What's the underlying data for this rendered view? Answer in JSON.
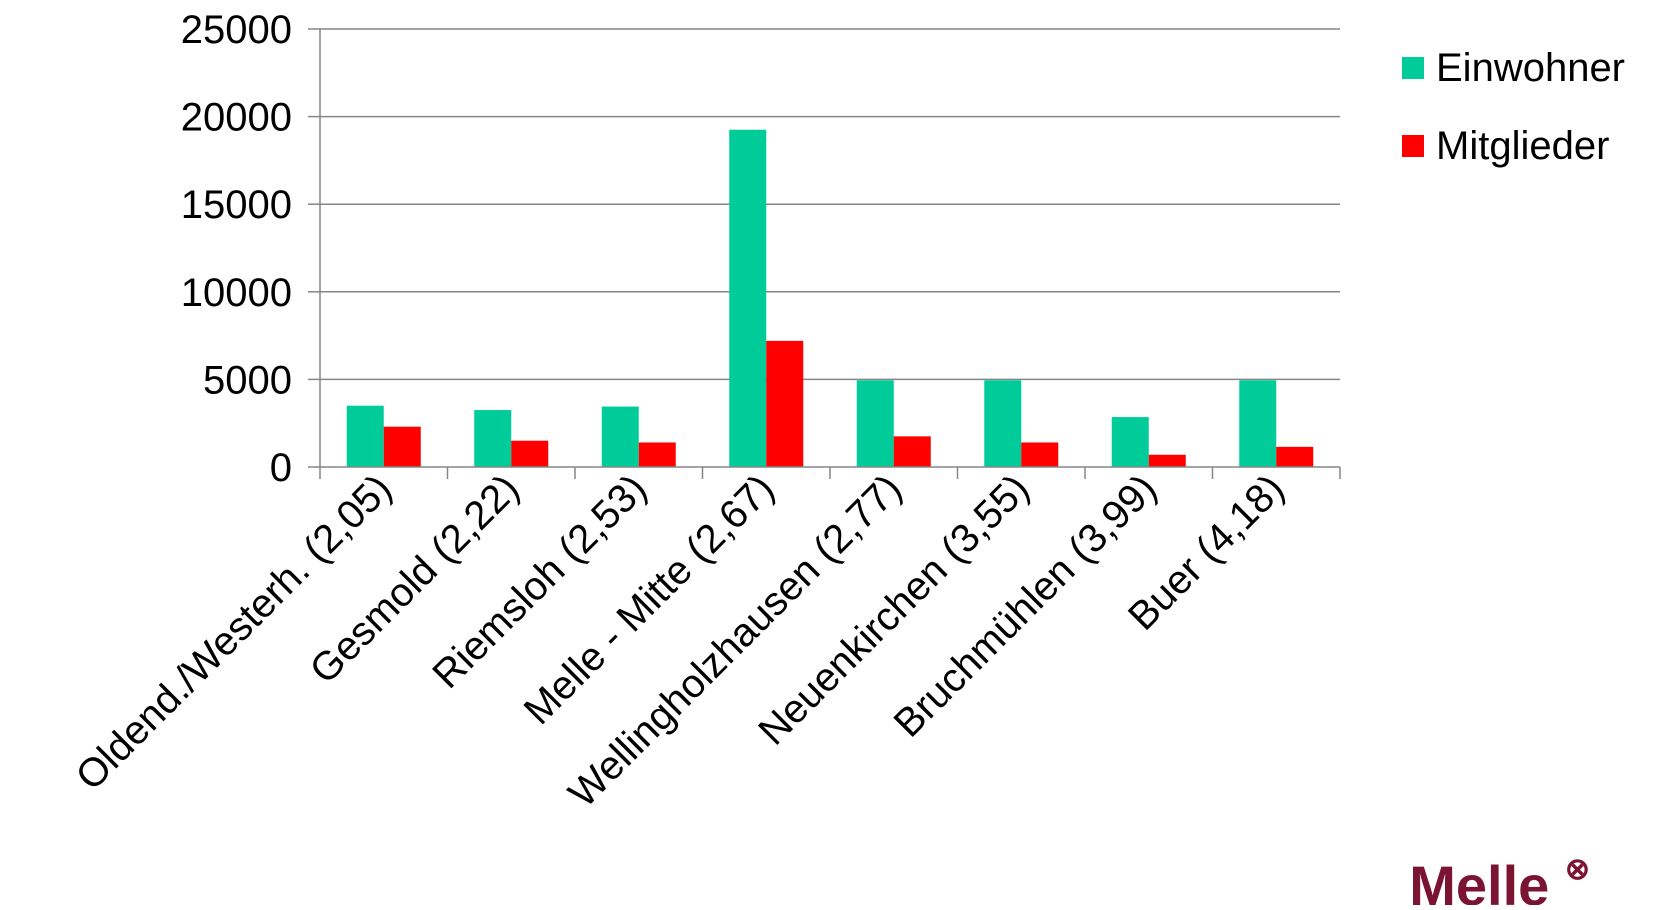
{
  "chart_data": {
    "type": "bar",
    "title": "",
    "xlabel": "",
    "ylabel": "",
    "categories": [
      "Oldend./Westerh. (2,05)",
      "Gesmold (2,22)",
      "Riemsloh (2,53)",
      "Melle - Mitte (2,67)",
      "Wellingholzhausen (2,77)",
      "Neuenkirchen (3,55)",
      "Bruchmühlen (3,99)",
      "Buer (4,18)"
    ],
    "series": [
      {
        "name": "Einwohner",
        "color": "#00CC99",
        "values": [
          3500,
          3250,
          3450,
          19250,
          4950,
          4950,
          2850,
          4950
        ]
      },
      {
        "name": "Mitglieder",
        "color": "#FF0000",
        "values": [
          2300,
          1500,
          1400,
          7200,
          1750,
          1400,
          700,
          1150
        ]
      }
    ],
    "ylim": [
      0,
      25000
    ],
    "y_ticks": [
      "0",
      "5000",
      "10000",
      "15000",
      "20000",
      "25000"
    ],
    "grid": true,
    "legend_position": "top-right"
  },
  "logo": {
    "text": "Melle",
    "symbol": "⊗",
    "color": "#7A1432"
  }
}
